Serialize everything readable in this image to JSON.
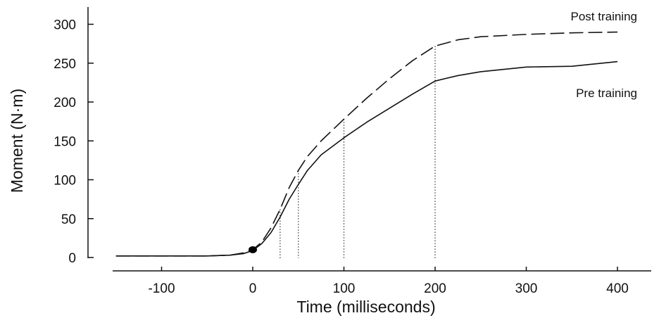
{
  "chart_data": {
    "type": "line",
    "xlabel": "Time (milliseconds)",
    "ylabel": "Moment (N·m)",
    "xlim": [
      -150,
      400
    ],
    "ylim": [
      0,
      300
    ],
    "xticks": [
      -100,
      0,
      100,
      200,
      300,
      400
    ],
    "yticks": [
      0,
      50,
      100,
      150,
      200,
      250,
      300
    ],
    "grid": false,
    "series": [
      {
        "name": "Post training",
        "style": "dashed",
        "x": [
          -150,
          -100,
          -50,
          -25,
          -10,
          0,
          10,
          20,
          30,
          40,
          50,
          60,
          75,
          100,
          125,
          150,
          175,
          200,
          225,
          250,
          300,
          350,
          400
        ],
        "y": [
          2,
          2,
          2,
          3,
          6,
          10,
          20,
          38,
          62,
          90,
          112,
          130,
          150,
          178,
          205,
          230,
          253,
          272,
          280,
          284,
          287,
          289,
          290
        ]
      },
      {
        "name": "Pre training",
        "style": "solid",
        "x": [
          -150,
          -100,
          -50,
          -25,
          -10,
          0,
          10,
          20,
          30,
          40,
          50,
          60,
          75,
          100,
          125,
          150,
          175,
          200,
          225,
          250,
          300,
          350,
          400
        ],
        "y": [
          2,
          2,
          2,
          3,
          5,
          9,
          18,
          32,
          52,
          75,
          94,
          112,
          132,
          154,
          174,
          192,
          210,
          227,
          234,
          239,
          245,
          246,
          252
        ]
      }
    ],
    "marker": {
      "x": 0,
      "y": 10
    },
    "reference_lines_x": [
      30,
      50,
      100,
      200
    ]
  }
}
